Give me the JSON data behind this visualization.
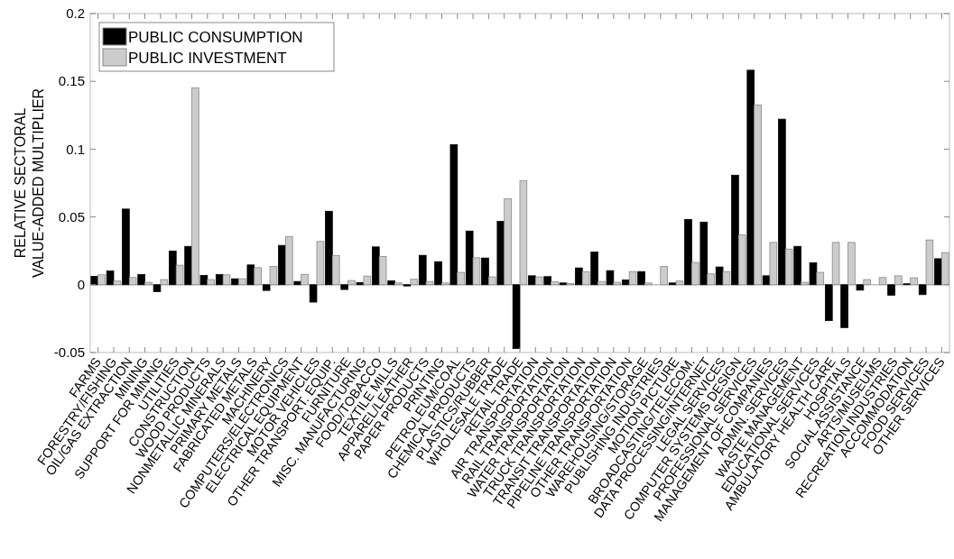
{
  "chart_data": {
    "type": "bar",
    "ylabel": "RELATIVE SECTORAL\nVALUE-ADDED MULTIPLIER",
    "categories": [
      "FARMS",
      "FORESTRY/FISHING",
      "OIL/GAS EXTRACTION",
      "MINING",
      "SUPPORT FOR MINING",
      "UTILITIES",
      "CONSTRUCTION",
      "WOOD PRODUCTS",
      "NONMETALLIC MINERALS",
      "PRIMARY METALS",
      "FABRICATED METALS",
      "MACHINERY",
      "COMPUTERS/ELECTRONICS",
      "ELECTRICAL EQUIPMENT",
      "MOTOR VEHICLES",
      "OTHER TRANSPORT. EQUIP.",
      "FURNITURE",
      "MISC. MANUFACTURING",
      "FOOD/TOBACCO",
      "TEXTILE MILLS",
      "APPAREL/LEATHER",
      "PAPER PRODUCTS",
      "PRINTING",
      "PETROLEUM/COAL",
      "CHEMICAL PRODUCTS",
      "PLASTICS/RUBBER",
      "WHOLESALE TRADE",
      "RETAIL TRADE",
      "AIR TRANSPORTATION",
      "RAIL TRANSPORTATION",
      "WATER TRANSPORTATION",
      "TRUCK TRANSPORTATION",
      "TRANSIT TRANSPORTATION",
      "PIPELINE TRANSPORTATION",
      "OTHER TRANSPORTATION",
      "WAREHOUSING/STORAGE",
      "PUBLISHING INDUSTRIES",
      "MOTION PICTURE",
      "BROADCASTING/TELECOM.",
      "DATA PROCESSING/INTERNET",
      "LEGAL SERVICES",
      "COMPUTER SYSTEMS DESIGN",
      "PROFESSIONAL SERVICES",
      "MANAGEMENT OF COMPANIES",
      "ADMIN. SERVICES",
      "WASTE MANAGEMENT",
      "EDUCATIONAL SERVICES",
      "AMBULATORY HEALTH CARE",
      "HOSPITALS",
      "SOCIAL ASSISTANCE",
      "ARTS/MUSEUMS",
      "RECREATION INDUSTRIES",
      "ACCOMMODATION",
      "FOOD SERVICES",
      "OTHER SERVICES"
    ],
    "series": [
      {
        "name": "PUBLIC CONSUMPTION",
        "color": "#000000",
        "values": [
          0.0062,
          0.0102,
          0.0558,
          0.0075,
          -0.0051,
          0.0248,
          0.0283,
          0.0069,
          0.0075,
          0.0044,
          0.0146,
          -0.0042,
          0.029,
          0.0024,
          -0.0128,
          0.0542,
          -0.0035,
          0.0015,
          0.0279,
          0.0029,
          -0.0009,
          0.0217,
          0.017,
          0.1033,
          0.0396,
          0.0197,
          0.0467,
          -0.0471,
          0.0066,
          0.006,
          0.0013,
          0.0124,
          0.0241,
          0.0104,
          0.0035,
          0.0097,
          0,
          0.0013,
          0.0482,
          0.0462,
          0.0131,
          0.0808,
          0.1582,
          0.0066,
          0.1221,
          0.0283,
          0.0162,
          -0.0265,
          -0.0316,
          -0.004,
          0,
          -0.0077,
          0.0007,
          -0.0073,
          0.0192
        ]
      },
      {
        "name": "PUBLIC INVESTMENT",
        "color": "#cccccc",
        "values": [
          0.0073,
          0.0027,
          0.0053,
          0.0018,
          0.0038,
          0.0144,
          0.1451,
          0.0038,
          0.0073,
          0.0044,
          0.0126,
          0.0135,
          0.0356,
          0.0077,
          0.0319,
          0.0215,
          0.0031,
          0.0064,
          0.0208,
          0.0013,
          0.004,
          0.0024,
          0.0013,
          0.0091,
          0.0199,
          0.0058,
          0.0633,
          0.0768,
          0.0058,
          0.0022,
          0.0009,
          0.0097,
          0.0024,
          0.0018,
          0.0097,
          0.0013,
          0.0135,
          0.0027,
          0.0164,
          0.008,
          0.0097,
          0.0367,
          0.1325,
          0.0312,
          0.0263,
          0.0018,
          0.0091,
          0.0312,
          0.0312,
          0.0038,
          0.0053,
          0.0066,
          0.0051,
          0.033,
          0.0237
        ]
      }
    ],
    "ylim": [
      -0.05,
      0.2
    ],
    "yticks": [
      -0.05,
      0,
      0.05,
      0.1,
      0.15,
      0.2
    ],
    "legend": "top left"
  }
}
